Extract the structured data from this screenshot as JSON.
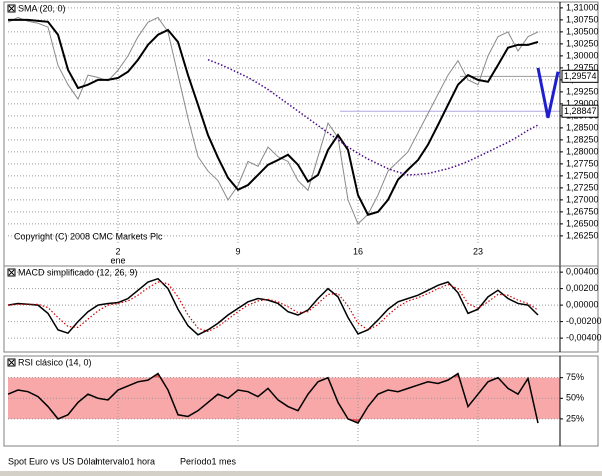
{
  "chart_data": [
    {
      "type": "line",
      "title": "SMA (20, 0)",
      "annotation": "Copyright (C) 2008 CMC Markets Plc",
      "categories": [
        null,
        null,
        null,
        null,
        null,
        null,
        null,
        null,
        null,
        null,
        null,
        "2",
        null,
        null,
        null,
        null,
        null,
        null,
        null,
        null,
        null,
        null,
        null,
        "9",
        null,
        null,
        null,
        null,
        null,
        null,
        null,
        null,
        null,
        null,
        null,
        "16",
        null,
        null,
        null,
        null,
        null,
        null,
        null,
        null,
        null,
        null,
        null,
        "23",
        null,
        null,
        null,
        null,
        null,
        null,
        null,
        null
      ],
      "month_label": "ene",
      "ylim": [
        1.2606,
        1.3106
      ],
      "yticks": [
        {
          "value": 1.31,
          "label": "1,31000"
        },
        {
          "value": 1.3075,
          "label": "1,30750"
        },
        {
          "value": 1.305,
          "label": "1,30500"
        },
        {
          "value": 1.3025,
          "label": "1,30250"
        },
        {
          "value": 1.3,
          "label": "1,30000"
        },
        {
          "value": 1.2975,
          "label": "1,29750"
        },
        {
          "value": 1.295,
          "label": "1,29500"
        },
        {
          "value": 1.2925,
          "label": "1,29250"
        },
        {
          "value": 1.29,
          "label": "1,29000"
        },
        {
          "value": 1.2875,
          "label": "1,28750"
        },
        {
          "value": 1.285,
          "label": "1,28500"
        },
        {
          "value": 1.2825,
          "label": "1,28250"
        },
        {
          "value": 1.28,
          "label": "1,28000"
        },
        {
          "value": 1.2775,
          "label": "1,27750"
        },
        {
          "value": 1.275,
          "label": "1,27500"
        },
        {
          "value": 1.2725,
          "label": "1,27250"
        },
        {
          "value": 1.27,
          "label": "1,27000"
        },
        {
          "value": 1.2675,
          "label": "1,26750"
        },
        {
          "value": 1.265,
          "label": "1,26500"
        },
        {
          "value": 1.2625,
          "label": "1,26250"
        }
      ],
      "grid": true,
      "levels": [
        {
          "value": 1.29574,
          "label": "1,29574",
          "color": "#999999"
        },
        {
          "value": 1.28847,
          "label": "1,28847",
          "color": "#b0a8e0"
        }
      ],
      "series": [
        {
          "color": "#8a8a8a",
          "width": 1,
          "values": [
            1.307,
            1.308,
            1.3072,
            1.3068,
            1.306,
            1.298,
            1.294,
            1.291,
            1.296,
            1.2955,
            1.2948,
            1.297,
            1.3,
            1.304,
            1.307,
            1.308,
            1.305,
            1.296,
            1.287,
            1.279,
            1.276,
            1.274,
            1.27,
            1.273,
            1.278,
            1.277,
            1.281,
            1.279,
            1.278,
            1.274,
            1.272,
            1.279,
            1.286,
            1.283,
            1.27,
            1.265,
            1.267,
            1.271,
            1.276,
            1.278,
            1.28,
            1.284,
            1.288,
            1.292,
            1.296,
            1.299,
            1.295,
            1.294,
            1.3,
            1.304,
            1.305,
            1.301,
            1.304,
            1.305,
            null,
            null
          ]
        },
        {
          "color": "#000000",
          "width": 2,
          "values": [
            1.3075,
            1.3075,
            1.3075,
            1.3073,
            1.3071,
            1.3044,
            1.2971,
            1.2933,
            1.294,
            1.295,
            1.295,
            1.2954,
            1.2967,
            1.2992,
            1.3023,
            1.3044,
            1.3054,
            1.3029,
            1.296,
            1.2898,
            1.2835,
            1.2788,
            1.2746,
            1.2721,
            1.2731,
            1.2752,
            1.2773,
            1.2783,
            1.2794,
            1.2773,
            1.2738,
            1.2752,
            1.2804,
            1.2835,
            1.2804,
            1.271,
            1.2669,
            1.2675,
            1.27,
            1.2742,
            1.2763,
            1.2783,
            1.2815,
            1.2856,
            1.2898,
            1.294,
            1.296,
            1.295,
            1.2946,
            1.2981,
            1.3017,
            1.3023,
            1.3023,
            1.3029,
            null,
            null
          ]
        },
        {
          "color": "#4b0a8c",
          "width": 1.5,
          "style": "dotted",
          "values": [
            null,
            null,
            null,
            null,
            null,
            null,
            null,
            null,
            null,
            null,
            null,
            null,
            null,
            null,
            null,
            null,
            null,
            null,
            null,
            null,
            1.2992,
            1.2984,
            1.2975,
            1.2965,
            1.2955,
            1.2943,
            1.293,
            1.2915,
            1.29,
            1.2885,
            1.287,
            1.2855,
            1.284,
            1.2825,
            1.281,
            1.2797,
            1.2785,
            1.2775,
            1.2765,
            1.2758,
            1.2752,
            1.2753,
            1.2755,
            1.276,
            1.2765,
            1.2772,
            1.278,
            1.279,
            1.28,
            1.281,
            1.282,
            1.2832,
            1.2845,
            1.2856,
            null,
            null
          ]
        },
        {
          "color": "#1f1fd0",
          "width": 3,
          "values": [
            null,
            null,
            null,
            null,
            null,
            null,
            null,
            null,
            null,
            null,
            null,
            null,
            null,
            null,
            null,
            null,
            null,
            null,
            null,
            null,
            null,
            null,
            null,
            null,
            null,
            null,
            null,
            null,
            null,
            null,
            null,
            null,
            null,
            null,
            null,
            null,
            null,
            null,
            null,
            null,
            null,
            null,
            null,
            null,
            null,
            null,
            null,
            null,
            null,
            null,
            null,
            null,
            null,
            1.2975,
            1.2871,
            1.2967
          ]
        }
      ]
    },
    {
      "type": "line",
      "title": "MACD simplificado (12, 26, 9)",
      "ylim": [
        -0.0052,
        0.0045
      ],
      "yticks": [
        {
          "value": 0.004,
          "label": "0,00400"
        },
        {
          "value": 0.002,
          "label": "0,00200"
        },
        {
          "value": 0,
          "label": "0,00000"
        },
        {
          "value": -0.002,
          "label": "-0,00200"
        },
        {
          "value": -0.004,
          "label": "-0,00400"
        }
      ],
      "grid": true,
      "series": [
        {
          "color": "#000000",
          "width": 1.5,
          "values": [
            0,
            0.0002,
            0.0001,
            0,
            -0.001,
            -0.003,
            -0.0034,
            -0.002,
            -0.0008,
            0,
            0.0002,
            0.0003,
            0.0008,
            0.0018,
            0.0028,
            0.0032,
            0.002,
            -0.0005,
            -0.0025,
            -0.0036,
            -0.003,
            -0.0022,
            -0.0012,
            -0.0004,
            0.0004,
            0.0008,
            0.0006,
            0.0002,
            -0.0008,
            -0.0012,
            -0.0006,
            0.0008,
            0.002,
            0.001,
            -0.0015,
            -0.0035,
            -0.003,
            -0.0018,
            -0.0005,
            0.0004,
            0.0008,
            0.0012,
            0.0018,
            0.0024,
            0.0028,
            0.0015,
            -0.001,
            -0.0005,
            0.001,
            0.0018,
            0.0008,
            0.0002,
            0,
            -0.0012
          ]
        },
        {
          "color": "#d00000",
          "width": 1.2,
          "style": "dotted",
          "values": [
            0,
            0.0001,
            0.0001,
            0.0001,
            -0.0003,
            -0.0015,
            -0.0026,
            -0.0027,
            -0.0017,
            -0.0007,
            0,
            0.0002,
            0.0005,
            0.0012,
            0.0021,
            0.0028,
            0.0026,
            0.001,
            -0.0012,
            -0.0028,
            -0.0032,
            -0.0026,
            -0.0017,
            -0.0008,
            0,
            0.0005,
            0.0007,
            0.0004,
            -0.0002,
            -0.0009,
            -0.0008,
            0.0002,
            0.0013,
            0.0014,
            -0.0001,
            -0.0022,
            -0.003,
            -0.0024,
            -0.0012,
            -0.0002,
            0.0005,
            0.0009,
            0.0014,
            0.002,
            0.0025,
            0.002,
            0.0002,
            -0.0004,
            0.0004,
            0.0013,
            0.0012,
            0.0006,
            0.0002,
            -0.0006
          ]
        }
      ]
    },
    {
      "type": "line",
      "title": "RSI clásico (14, 0)",
      "ylim": [
        -3,
        94
      ],
      "yticks": [
        {
          "value": 75,
          "label": "75%"
        },
        {
          "value": 50,
          "label": "50%"
        },
        {
          "value": 25,
          "label": "25%"
        }
      ],
      "grid": true,
      "band": [
        25,
        75
      ],
      "band_color": "#f8a8a8",
      "over_color": "#e85656",
      "series": [
        {
          "color": "#000000",
          "width": 1.5,
          "values": [
            55,
            60,
            58,
            52,
            40,
            25,
            30,
            45,
            55,
            50,
            48,
            60,
            65,
            70,
            72,
            80,
            60,
            30,
            28,
            35,
            45,
            55,
            50,
            60,
            58,
            52,
            62,
            48,
            40,
            35,
            55,
            70,
            75,
            45,
            25,
            20,
            40,
            55,
            60,
            58,
            62,
            66,
            70,
            68,
            72,
            80,
            40,
            55,
            70,
            75,
            62,
            55,
            74,
            20
          ]
        }
      ]
    }
  ],
  "footer": [
    "Spot Euro vs US Dólar",
    "Intervalo1 hora",
    "Período1 mes"
  ]
}
